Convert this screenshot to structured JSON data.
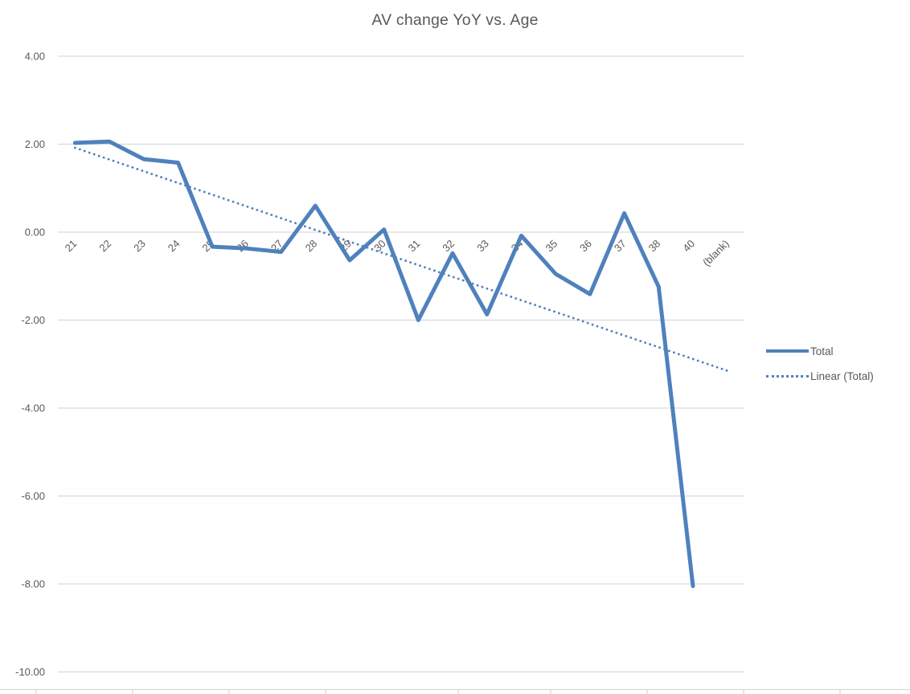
{
  "title": "AV change YoY vs. Age",
  "colors": {
    "series": "#4F81BD",
    "trendline": "#4F81BD",
    "gridline": "#D9D9D9",
    "sheet_edge": "#D9D9D9",
    "text": "#595959",
    "background": "#FFFFFF"
  },
  "legend": {
    "position": "right",
    "items": [
      {
        "label": "Total",
        "style": "solid"
      },
      {
        "label": "Linear (Total)",
        "style": "dotted"
      }
    ]
  },
  "chart_data": {
    "type": "line",
    "title": "AV change YoY vs. Age",
    "categories": [
      "21",
      "22",
      "23",
      "24",
      "25",
      "26",
      "27",
      "28",
      "29",
      "30",
      "31",
      "32",
      "33",
      "34",
      "35",
      "36",
      "37",
      "38",
      "40",
      "(blank)"
    ],
    "series": [
      {
        "name": "Total",
        "values": [
          2.03,
          2.06,
          1.66,
          1.58,
          -0.33,
          -0.37,
          -0.45,
          0.6,
          -0.64,
          0.06,
          -2.0,
          -0.48,
          -1.87,
          -0.08,
          -0.95,
          -1.41,
          0.43,
          -1.24,
          -8.05,
          null
        ]
      }
    ],
    "trendline": {
      "name": "Linear (Total)",
      "series": "Total",
      "start_value": 1.92,
      "end_value": -3.15,
      "style": "dotted"
    },
    "xlabel": "",
    "ylabel": "",
    "y_ticks": [
      4,
      2,
      0,
      -2,
      -4,
      -6,
      -8,
      -10
    ],
    "y_tick_labels": [
      "4.00",
      "2.00",
      "0.00",
      "-2.00",
      "-4.00",
      "-6.00",
      "-8.00",
      "-10.00"
    ],
    "ylim": [
      -10.55,
      4
    ],
    "x_label_rotation": 45,
    "grid": "horizontal-major",
    "legend_position": "right"
  }
}
